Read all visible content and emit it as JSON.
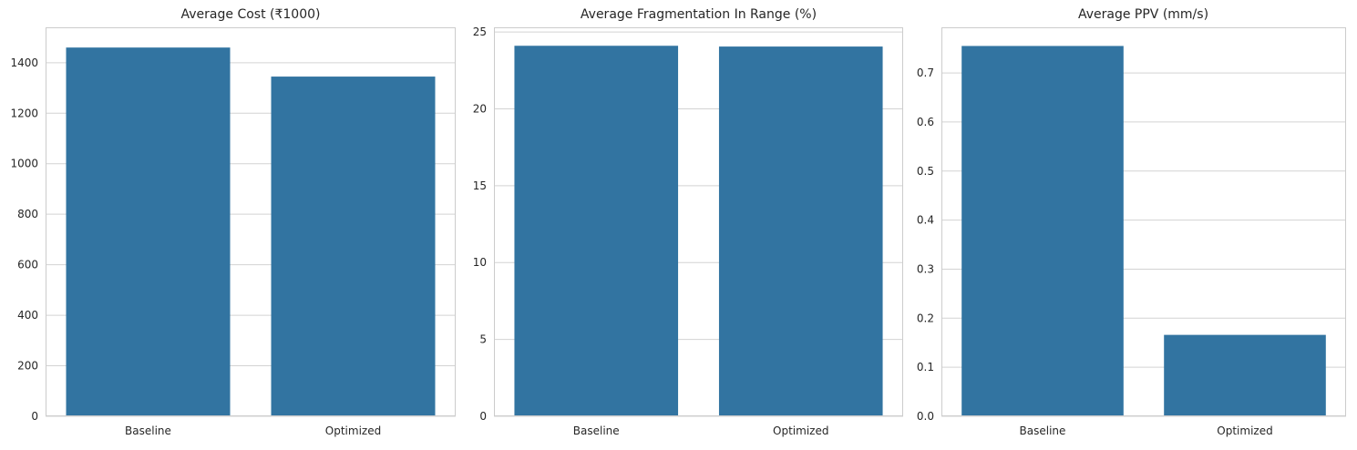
{
  "chart_data": [
    {
      "type": "bar",
      "title": "Average Cost (₹1000)",
      "xlabel": "",
      "ylabel": "",
      "categories": [
        "Baseline",
        "Optimized"
      ],
      "values": [
        1460,
        1345
      ],
      "ylim": [
        0,
        1540
      ],
      "yticks": [
        0,
        200,
        400,
        600,
        800,
        1000,
        1200,
        1400
      ],
      "grid": true,
      "bar_color": "#3274a1"
    },
    {
      "type": "bar",
      "title": "Average Fragmentation In Range (%)",
      "xlabel": "",
      "ylabel": "",
      "categories": [
        "Baseline",
        "Optimized"
      ],
      "values": [
        24.1,
        24.05
      ],
      "ylim": [
        0,
        25.3
      ],
      "yticks": [
        0,
        5,
        10,
        15,
        20,
        25
      ],
      "grid": true,
      "bar_color": "#3274a1"
    },
    {
      "type": "bar",
      "title": "Average PPV (mm/s)",
      "xlabel": "",
      "ylabel": "",
      "categories": [
        "Baseline",
        "Optimized"
      ],
      "values": [
        0.755,
        0.166
      ],
      "ylim": [
        0,
        0.793
      ],
      "yticks": [
        0.0,
        0.1,
        0.2,
        0.3,
        0.4,
        0.5,
        0.6,
        0.7
      ],
      "grid": true,
      "bar_color": "#3274a1"
    }
  ]
}
